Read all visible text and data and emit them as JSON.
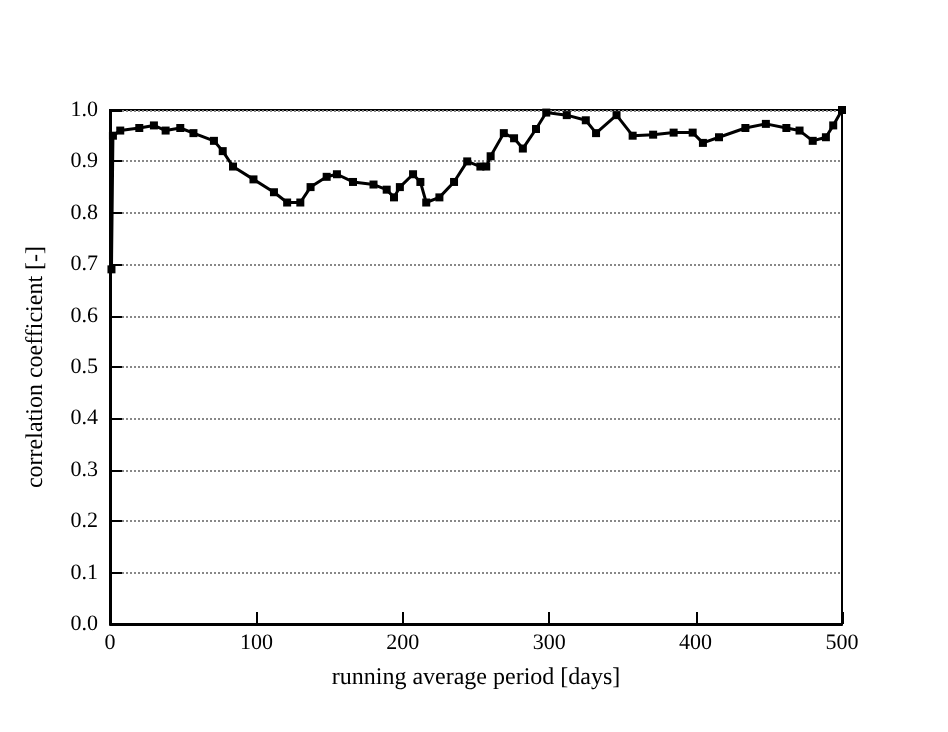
{
  "chart_data": {
    "type": "line",
    "xlabel": "running average period [days]",
    "ylabel": "correlation coefficient [-]",
    "x": [
      1,
      2,
      7,
      20,
      30,
      38,
      48,
      57,
      71,
      77,
      84,
      98,
      112,
      121,
      130,
      137,
      148,
      155,
      166,
      180,
      189,
      194,
      198,
      207,
      212,
      216,
      225,
      235,
      244,
      253,
      257,
      260,
      269,
      276,
      282,
      291,
      298,
      312,
      325,
      332,
      346,
      357,
      371,
      385,
      398,
      405,
      416,
      434,
      448,
      462,
      471,
      480,
      489,
      494,
      500
    ],
    "series": [
      {
        "color": "#000000",
        "values": [
          0.69,
          0.95,
          0.96,
          0.965,
          0.97,
          0.96,
          0.965,
          0.955,
          0.94,
          0.92,
          0.89,
          0.865,
          0.84,
          0.82,
          0.82,
          0.85,
          0.87,
          0.875,
          0.86,
          0.855,
          0.845,
          0.83,
          0.85,
          0.875,
          0.86,
          0.82,
          0.83,
          0.86,
          0.9,
          0.89,
          0.89,
          0.91,
          0.955,
          0.945,
          0.925,
          0.963,
          0.995,
          0.99,
          0.98,
          0.955,
          0.99,
          0.95,
          0.952,
          0.956,
          0.956,
          0.936,
          0.947,
          0.965,
          0.973,
          0.965,
          0.96,
          0.94,
          0.947,
          0.97,
          1.0
        ]
      }
    ],
    "xlim": [
      0,
      500
    ],
    "xticks": [
      0,
      100,
      200,
      300,
      400,
      500
    ],
    "ylim": [
      0,
      1
    ],
    "yticks": [
      {
        "value": 0,
        "label": "0.0"
      },
      {
        "value": 0.1,
        "label": "0.1"
      },
      {
        "value": 0.2,
        "label": "0.2"
      },
      {
        "value": 0.3,
        "label": "0.3"
      },
      {
        "value": 0.4,
        "label": "0.4"
      },
      {
        "value": 0.5,
        "label": "0.5"
      },
      {
        "value": 0.6,
        "label": "0.6"
      },
      {
        "value": 0.7,
        "label": "0.7"
      },
      {
        "value": 0.8,
        "label": "0.8"
      },
      {
        "value": 0.9,
        "label": "0.9"
      },
      {
        "value": 1,
        "label": "1.0"
      }
    ],
    "grid": "y",
    "marker": "square",
    "line_style": "solid"
  }
}
